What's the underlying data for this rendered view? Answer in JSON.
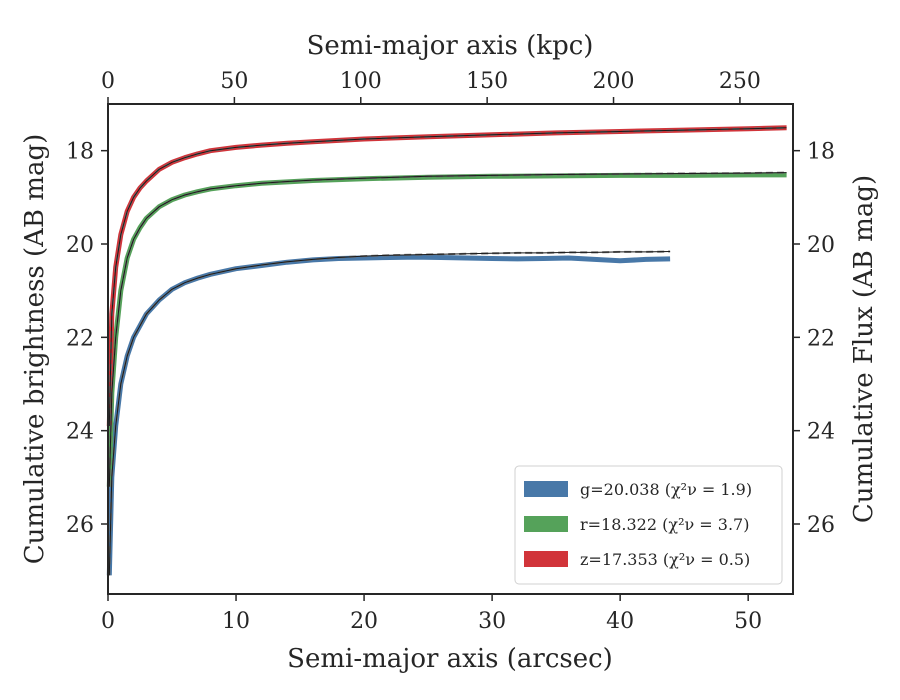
{
  "chart_data": {
    "type": "line",
    "xlabel_bottom": "Semi-major axis (arcsec)",
    "xlabel_top": "Semi-major axis (kpc)",
    "ylabel_left": "Cumulative brightness (AB mag)",
    "ylabel_right": "Cumulative Flux (AB mag)",
    "xlim": [
      0,
      53.5
    ],
    "ylim": [
      27.5,
      17.0
    ],
    "xlim_top": [
      0,
      271
    ],
    "x_ticks": [
      0,
      10,
      20,
      30,
      40,
      50
    ],
    "x_ticks_top": [
      0,
      50,
      100,
      150,
      200,
      250
    ],
    "y_ticks": [
      18,
      20,
      22,
      24,
      26
    ],
    "legend_position": "lower-right",
    "series": [
      {
        "name": "g=20.038 ",
        "name_math": "(χ²ν = 1.9)",
        "color": "#4878a8",
        "x": [
          0.1,
          0.3,
          0.6,
          1.0,
          1.5,
          2.0,
          2.5,
          3.0,
          4.0,
          5.0,
          6.0,
          7.0,
          8.0,
          10.0,
          12.0,
          14.0,
          16.0,
          18.0,
          20.0,
          22.0,
          24.0,
          26.0,
          28.0,
          30.0,
          32.0,
          34.0,
          36.0,
          38.0,
          40.0,
          42.0,
          43.9
        ],
        "y": [
          27.1,
          25.0,
          23.9,
          23.0,
          22.4,
          22.0,
          21.75,
          21.5,
          21.2,
          20.97,
          20.83,
          20.73,
          20.65,
          20.53,
          20.46,
          20.39,
          20.34,
          20.31,
          20.3,
          20.29,
          20.28,
          20.29,
          20.3,
          20.31,
          20.32,
          20.31,
          20.3,
          20.33,
          20.36,
          20.33,
          20.32
        ],
        "model_x": [
          0.1,
          0.3,
          0.6,
          1.0,
          1.5,
          2.0,
          2.5,
          3.0,
          4.0,
          5.0,
          6.0,
          7.0,
          8.0,
          10.0,
          12.0,
          14.0,
          16.0,
          18.0,
          20.0,
          22.0,
          24.0,
          26.0,
          28.0,
          30.0,
          32.0,
          34.0,
          36.0,
          38.0,
          40.0,
          42.0,
          43.9
        ],
        "model_y": [
          27.1,
          25.0,
          23.9,
          23.0,
          22.4,
          22.0,
          21.75,
          21.5,
          21.2,
          20.97,
          20.83,
          20.73,
          20.65,
          20.53,
          20.45,
          20.38,
          20.33,
          20.29,
          20.26,
          20.24,
          20.23,
          20.22,
          20.21,
          20.2,
          20.19,
          20.19,
          20.18,
          20.18,
          20.17,
          20.17,
          20.16
        ]
      },
      {
        "name": "r=18.322 ",
        "name_math": "(χ²ν = 3.7)",
        "color": "#55a25a",
        "x": [
          0.1,
          0.3,
          0.6,
          1.0,
          1.5,
          2.0,
          2.5,
          3.0,
          4.0,
          5.0,
          6.0,
          7.0,
          8.0,
          10.0,
          12.0,
          14.0,
          16.0,
          18.0,
          20.0,
          25.0,
          30.0,
          35.0,
          40.0,
          45.0,
          50.0,
          53.0
        ],
        "y": [
          25.2,
          23.2,
          22.0,
          21.0,
          20.3,
          19.9,
          19.65,
          19.45,
          19.2,
          19.05,
          18.95,
          18.88,
          18.82,
          18.75,
          18.7,
          18.67,
          18.64,
          18.62,
          18.6,
          18.57,
          18.55,
          18.54,
          18.53,
          18.53,
          18.52,
          18.52
        ],
        "model_x": [
          0.1,
          0.3,
          0.6,
          1.0,
          1.5,
          2.0,
          2.5,
          3.0,
          4.0,
          5.0,
          6.0,
          7.0,
          8.0,
          10.0,
          12.0,
          14.0,
          16.0,
          18.0,
          20.0,
          25.0,
          30.0,
          35.0,
          40.0,
          45.0,
          50.0,
          53.0
        ],
        "model_y": [
          25.2,
          23.2,
          22.0,
          21.0,
          20.3,
          19.9,
          19.65,
          19.45,
          19.2,
          19.05,
          18.95,
          18.88,
          18.82,
          18.75,
          18.7,
          18.66,
          18.63,
          18.61,
          18.59,
          18.55,
          18.53,
          18.51,
          18.5,
          18.49,
          18.48,
          18.47
        ]
      },
      {
        "name": "z=17.353 ",
        "name_math": "(χ²ν = 0.5)",
        "color": "#d1343a",
        "x": [
          0.1,
          0.3,
          0.6,
          1.0,
          1.5,
          2.0,
          2.5,
          3.0,
          4.0,
          5.0,
          6.0,
          7.0,
          8.0,
          10.0,
          12.0,
          14.0,
          16.0,
          18.0,
          20.0,
          25.0,
          30.0,
          35.0,
          40.0,
          45.0,
          50.0,
          53.0
        ],
        "y": [
          23.9,
          21.5,
          20.5,
          19.8,
          19.3,
          19.0,
          18.8,
          18.65,
          18.4,
          18.25,
          18.15,
          18.07,
          18.0,
          17.93,
          17.88,
          17.84,
          17.81,
          17.78,
          17.75,
          17.7,
          17.66,
          17.62,
          17.59,
          17.56,
          17.53,
          17.51
        ],
        "model_x": [
          0.1,
          0.3,
          0.6,
          1.0,
          1.5,
          2.0,
          2.5,
          3.0,
          4.0,
          5.0,
          6.0,
          7.0,
          8.0,
          10.0,
          12.0,
          14.0,
          16.0,
          18.0,
          20.0,
          25.0,
          30.0,
          35.0,
          40.0,
          45.0,
          50.0,
          53.0
        ],
        "model_y": [
          23.9,
          21.5,
          20.5,
          19.8,
          19.3,
          19.0,
          18.8,
          18.65,
          18.4,
          18.25,
          18.15,
          18.07,
          18.0,
          17.93,
          17.88,
          17.84,
          17.81,
          17.78,
          17.75,
          17.7,
          17.66,
          17.62,
          17.59,
          17.56,
          17.53,
          17.51
        ]
      }
    ]
  }
}
